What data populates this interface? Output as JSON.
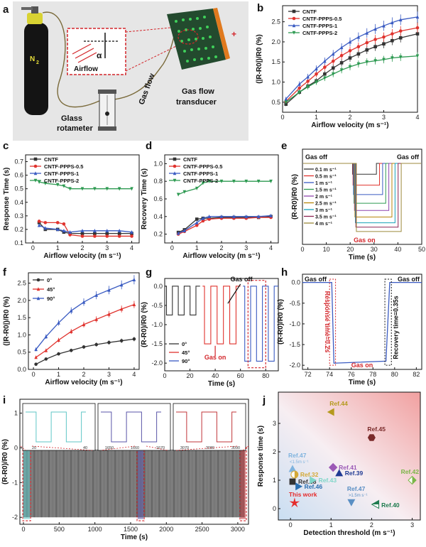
{
  "panels": {
    "a": {
      "label": "a",
      "gas": "N",
      "gas_sub": "2",
      "inset": "Airflow",
      "angle": "α",
      "flow": "Gas flow",
      "rotameter": [
        "Glass",
        "rotameter"
      ],
      "transducer": [
        "Gas flow",
        "transducer"
      ]
    },
    "b": {
      "label": "b"
    },
    "c": {
      "label": "c"
    },
    "d": {
      "label": "d"
    },
    "e": {
      "label": "e"
    },
    "f": {
      "label": "f"
    },
    "g": {
      "label": "g"
    },
    "h": {
      "label": "h"
    },
    "i": {
      "label": "i"
    },
    "j": {
      "label": "j"
    }
  },
  "colors": {
    "cntf": "#333333",
    "p05": "#e0332e",
    "p1": "#3a5bc2",
    "p2": "#2e9a52"
  },
  "chart_data": [
    {
      "id": "b",
      "type": "line",
      "xlabel": "Airflow velocity (m s⁻¹)",
      "ylabel": "(|R-R0|)/R0 (%)",
      "xlim": [
        0,
        4
      ],
      "ylim": [
        0.25,
        2.9
      ],
      "xticks": [
        0,
        1,
        2,
        3,
        4
      ],
      "yticks": [
        0.5,
        1.0,
        1.5,
        2.0,
        2.5
      ],
      "x": [
        0.1,
        0.5,
        0.75,
        1.0,
        1.25,
        1.5,
        1.75,
        2.0,
        2.25,
        2.5,
        2.75,
        3.0,
        3.25,
        3.5,
        4.0
      ],
      "series": [
        {
          "name": "CNTF",
          "color": "#333333",
          "values": [
            0.45,
            0.75,
            0.9,
            1.03,
            1.2,
            1.35,
            1.48,
            1.6,
            1.7,
            1.8,
            1.88,
            1.95,
            2.03,
            2.1,
            2.2
          ]
        },
        {
          "name": "CNTF-PPPS-0.5",
          "color": "#e0332e",
          "values": [
            0.52,
            0.85,
            1.02,
            1.2,
            1.37,
            1.52,
            1.66,
            1.78,
            1.88,
            1.98,
            2.06,
            2.12,
            2.2,
            2.27,
            2.35
          ]
        },
        {
          "name": "CNTF-PPPS-1",
          "color": "#3a5bc2",
          "values": [
            0.58,
            0.95,
            1.13,
            1.33,
            1.52,
            1.7,
            1.86,
            2.0,
            2.12,
            2.22,
            2.32,
            2.4,
            2.48,
            2.55,
            2.62
          ]
        },
        {
          "name": "CNTF-PPPS-2",
          "color": "#2e9a52",
          "values": [
            0.5,
            0.75,
            0.88,
            1.0,
            1.1,
            1.2,
            1.3,
            1.38,
            1.45,
            1.5,
            1.53,
            1.56,
            1.6,
            1.62,
            1.65
          ]
        }
      ],
      "legend": "top-left"
    },
    {
      "id": "c",
      "type": "line",
      "xlabel": "Airflow velocity (m s⁻¹)",
      "ylabel": "Response Time (s)",
      "xlim": [
        -0.3,
        4.3
      ],
      "ylim": [
        0.1,
        0.75
      ],
      "xticks": [
        0,
        1,
        2,
        3,
        4
      ],
      "yticks": [
        0.1,
        0.2,
        0.3,
        0.4,
        0.5,
        0.6,
        0.7
      ],
      "x": [
        0.25,
        0.5,
        1.0,
        1.25,
        1.5,
        2.0,
        2.5,
        3.0,
        3.5,
        4.0
      ],
      "series": [
        {
          "name": "CNTF",
          "color": "#333333",
          "values": [
            0.25,
            0.2,
            0.2,
            0.18,
            0.17,
            0.17,
            0.17,
            0.17,
            0.17,
            0.17
          ]
        },
        {
          "name": "CNTF-PPPS-0.5",
          "color": "#e0332e",
          "values": [
            0.26,
            0.25,
            0.25,
            0.24,
            0.16,
            0.15,
            0.15,
            0.15,
            0.15,
            0.15
          ]
        },
        {
          "name": "CNTF-PPPS-1",
          "color": "#3a5bc2",
          "values": [
            0.23,
            0.21,
            0.2,
            0.19,
            0.18,
            0.19,
            0.19,
            0.19,
            0.19,
            0.18
          ]
        },
        {
          "name": "CNTF-PPPS-2",
          "color": "#2e9a52",
          "values": [
            0.55,
            0.54,
            0.53,
            0.52,
            0.5,
            0.5,
            0.5,
            0.5,
            0.5,
            0.5
          ]
        }
      ],
      "legend": "top"
    },
    {
      "id": "d",
      "type": "line",
      "xlabel": "Airflow velocity (m s⁻¹)",
      "ylabel": "Recovery Time (s)",
      "xlim": [
        -0.3,
        4.3
      ],
      "ylim": [
        0.1,
        1.1
      ],
      "xticks": [
        0,
        1,
        2,
        3,
        4
      ],
      "yticks": [
        0.2,
        0.4,
        0.6,
        0.8,
        1.0
      ],
      "x": [
        0.25,
        0.5,
        1.0,
        1.25,
        1.5,
        2.0,
        2.5,
        3.0,
        3.5,
        4.0
      ],
      "series": [
        {
          "name": "CNTF",
          "color": "#333333",
          "values": [
            0.22,
            0.25,
            0.37,
            0.38,
            0.38,
            0.39,
            0.39,
            0.39,
            0.39,
            0.4
          ]
        },
        {
          "name": "CNTF-PPPS-0.5",
          "color": "#e0332e",
          "values": [
            0.2,
            0.23,
            0.3,
            0.35,
            0.37,
            0.38,
            0.38,
            0.38,
            0.39,
            0.39
          ]
        },
        {
          "name": "CNTF-PPPS-1",
          "color": "#3a5bc2",
          "values": [
            0.21,
            0.24,
            0.33,
            0.38,
            0.4,
            0.4,
            0.4,
            0.4,
            0.4,
            0.41
          ]
        },
        {
          "name": "CNTF-PPPS-2",
          "color": "#2e9a52",
          "values": [
            0.65,
            0.68,
            0.72,
            0.78,
            0.8,
            0.8,
            0.8,
            0.8,
            0.8,
            0.8
          ]
        }
      ],
      "legend": "top"
    },
    {
      "id": "e",
      "type": "line",
      "xlabel": "Time (s)",
      "ylabel": "(R-R0)/R0 (%)",
      "xlim": [
        0,
        50
      ],
      "xticks": [
        0,
        10,
        20,
        30,
        40,
        50
      ],
      "gas_on_label": "Gas on",
      "gas_off_labels": [
        "Gas off",
        "Gas off"
      ],
      "series": [
        {
          "name": "0.1 m s⁻¹",
          "color": "#333333",
          "level": 0.15
        },
        {
          "name": "0.5 m s⁻¹",
          "color": "#e0332e",
          "level": 0.3
        },
        {
          "name": "1 m s⁻¹",
          "color": "#3a5bc2",
          "level": 0.43
        },
        {
          "name": "1.5 m s⁻¹",
          "color": "#2e9a52",
          "level": 0.55
        },
        {
          "name": "2 m s⁻¹",
          "color": "#8e44ad",
          "level": 0.65
        },
        {
          "name": "2.5 m s⁻¹",
          "color": "#b8860b",
          "level": 0.74
        },
        {
          "name": "3 m s⁻¹",
          "color": "#17a2b8",
          "level": 0.82
        },
        {
          "name": "3.5 m s⁻¹",
          "color": "#8b2252",
          "level": 0.88
        },
        {
          "name": "4 m s⁻¹",
          "color": "#9c8a3c",
          "level": 0.94
        }
      ]
    },
    {
      "id": "f",
      "type": "line",
      "xlabel": "Airflow velocity (m s⁻¹)",
      "ylabel": "(|R-R0|)/R0 (%)",
      "xlim": [
        -0.2,
        4.2
      ],
      "ylim": [
        0,
        2.8
      ],
      "xticks": [
        0,
        1,
        2,
        3,
        4
      ],
      "yticks": [
        0.0,
        0.5,
        1.0,
        1.5,
        2.0,
        2.5
      ],
      "x": [
        0.1,
        0.5,
        1.0,
        1.5,
        2.0,
        2.5,
        3.0,
        3.5,
        4.0
      ],
      "series": [
        {
          "name": "0°",
          "color": "#333333",
          "values": [
            0.15,
            0.3,
            0.45,
            0.55,
            0.65,
            0.72,
            0.78,
            0.83,
            0.88
          ]
        },
        {
          "name": "45°",
          "color": "#e0332e",
          "values": [
            0.35,
            0.55,
            0.85,
            1.1,
            1.3,
            1.45,
            1.6,
            1.75,
            1.88
          ]
        },
        {
          "name": "90°",
          "color": "#3a5bc2",
          "values": [
            0.58,
            0.95,
            1.35,
            1.7,
            1.95,
            2.15,
            2.3,
            2.45,
            2.6
          ]
        }
      ],
      "legend": "top-left"
    },
    {
      "id": "g",
      "type": "line",
      "xlabel": "Time (s)",
      "ylabel": "(R-R0)/R0 (%)",
      "xlim": [
        0,
        90
      ],
      "ylim": [
        -2.2,
        0.2
      ],
      "xticks": [
        0,
        20,
        40,
        60,
        80
      ],
      "yticks": [
        0.0,
        -0.5,
        -1.0,
        -1.5,
        -2.0
      ],
      "annotations": [
        "Gas off",
        "Gas on"
      ],
      "series": [
        {
          "name": "0°",
          "color": "#333333",
          "level": -0.75,
          "segment": [
            0,
            28
          ]
        },
        {
          "name": "45°",
          "color": "#e0332e",
          "level": -1.5,
          "segment": [
            30,
            60
          ]
        },
        {
          "name": "90°",
          "color": "#3a5bc2",
          "level": -1.95,
          "segment": [
            62,
            90
          ]
        }
      ]
    },
    {
      "id": "h",
      "type": "line",
      "xlabel": "Time (s)",
      "ylabel": "(R-R0)/R0 (%)",
      "xlim": [
        71.5,
        82.5
      ],
      "ylim": [
        -2.1,
        0.2
      ],
      "xticks": [
        72,
        74,
        76,
        78,
        80,
        82
      ],
      "yticks": [
        0.0,
        -0.5,
        -1.0,
        -1.5,
        -2.0
      ],
      "annotations": {
        "gas_off_left": "Gas off",
        "gas_off_right": "Gas off",
        "gas_on": "Gas on",
        "response": "Response time=0.2s",
        "recovery": "Recovery time=0.35s"
      }
    },
    {
      "id": "i",
      "type": "line",
      "xlabel": "Time (s)",
      "ylabel": "(R-R0)/R0 (%)",
      "xlim": [
        -50,
        3150
      ],
      "ylim": [
        -2.2,
        1.4
      ],
      "xticks": [
        0,
        500,
        1000,
        1500,
        2000,
        2500,
        3000
      ],
      "yticks": [
        1,
        0,
        -1,
        -2
      ],
      "insets": [
        {
          "ticks": [
            "20",
            "40"
          ],
          "color": "#5fc6c6"
        },
        {
          "ticks": [
            "1650",
            "1660",
            "1670"
          ],
          "color": "#5a55a8"
        },
        {
          "ticks": [
            "3070",
            "3080",
            "3090"
          ],
          "color": "#c0353a"
        }
      ]
    },
    {
      "id": "j",
      "type": "scatter",
      "xlabel": "Detection threshold (m s⁻¹)",
      "ylabel": "Response time (s)",
      "xlim": [
        -0.3,
        3.2
      ],
      "ylim": [
        -0.4,
        4.1
      ],
      "xticks": [
        0,
        1,
        2,
        3
      ],
      "yticks": [
        0,
        1,
        2,
        3
      ],
      "points": [
        {
          "label": "Ref.44",
          "x": 1.0,
          "y": 3.4,
          "color": "#b59a1e",
          "shape": "tri-left"
        },
        {
          "label": "Ref.45",
          "x": 2.0,
          "y": 2.5,
          "color": "#7a2a2a",
          "shape": "hex"
        },
        {
          "label": "Ref.47",
          "sub": "<1.5m s⁻¹",
          "x": 0.05,
          "y": 1.4,
          "color": "#7fb3de",
          "shape": "tri-up"
        },
        {
          "label": "Ref.41",
          "x": 1.05,
          "y": 1.45,
          "color": "#9b59b6",
          "shape": "diamond"
        },
        {
          "label": "Ref.39",
          "x": 1.2,
          "y": 1.25,
          "color": "#1f3a93",
          "shape": "tri-up"
        },
        {
          "label": "Ref.32",
          "x": 0.1,
          "y": 1.2,
          "color": "#d4a937",
          "shape": "half-circle"
        },
        {
          "label": "Ref.38",
          "x": 0.05,
          "y": 0.95,
          "color": "#333333",
          "shape": "square"
        },
        {
          "label": "Ref.43",
          "x": 0.55,
          "y": 1.0,
          "color": "#7fd6c8",
          "shape": "tri-right"
        },
        {
          "label": "Ref.46",
          "x": 0.2,
          "y": 0.78,
          "color": "#2a6fb0",
          "shape": "tri-right"
        },
        {
          "label": "Ref.42",
          "x": 3.0,
          "y": 1.0,
          "color": "#7ab648",
          "shape": "diamond-half"
        },
        {
          "label": "Ref.47",
          "sub": ">1.5m s⁻¹",
          "x": 1.5,
          "y": 0.22,
          "color": "#5a8fc4",
          "shape": "tri-down"
        },
        {
          "label": "Ref.40",
          "x": 2.1,
          "y": 0.15,
          "color": "#1e7b4f",
          "shape": "tri-half"
        },
        {
          "label": "This work",
          "x": 0.1,
          "y": 0.2,
          "color": "#e52b2b",
          "shape": "star"
        }
      ]
    }
  ]
}
